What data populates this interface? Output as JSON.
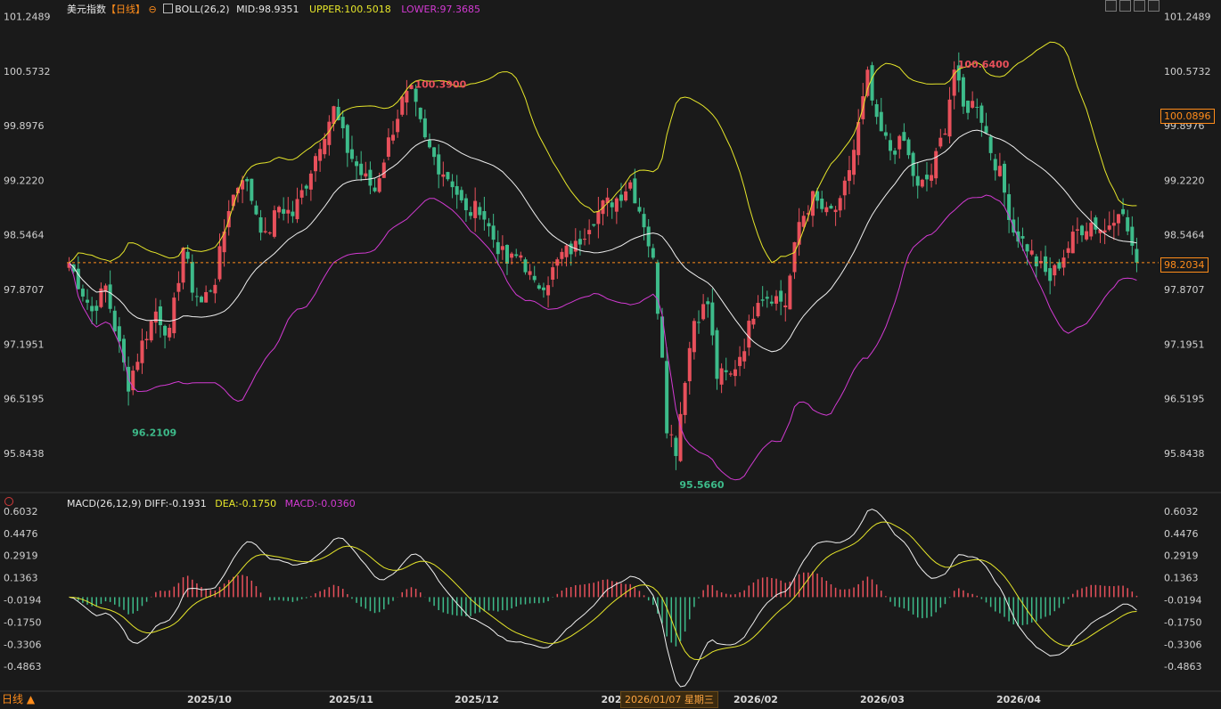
{
  "header": {
    "title": "美元指数",
    "period": "【日线】",
    "boll_label": "BOLL(26,2)",
    "mid": "MID:98.9351",
    "upper": "UPPER:100.5018",
    "lower": "LOWER:97.3685"
  },
  "macd_header": {
    "label": "MACD(26,12,9)",
    "diff": "DIFF:-0.1931",
    "dea": "DEA:-0.1750",
    "macd": "MACD:-0.0360"
  },
  "price_axis": [
    "101.2489",
    "100.5732",
    "99.8976",
    "99.2220",
    "98.5464",
    "97.8707",
    "97.1951",
    "96.5195",
    "95.8438"
  ],
  "macd_axis": [
    "0.6032",
    "0.4476",
    "0.2919",
    "0.1363",
    "-0.0194",
    "-0.1750",
    "-0.3306",
    "-0.4863"
  ],
  "time_labels": [
    "2025/10",
    "2025/11",
    "2025/12",
    "202",
    "2026/02",
    "2026/03",
    "2026/04"
  ],
  "date_tip": "2026/01/07 星期三",
  "bottom_tab": "日线 ▲",
  "current_price_tag": "98.2034",
  "upper_price_tag": "100.0896",
  "annotations": {
    "high1": "100.3900",
    "high2": "100.6400",
    "low1": "96.2109",
    "low2": "95.5660"
  },
  "colors": {
    "up": "#e8505b",
    "down": "#3dbb8a",
    "upper": "#e6e62a",
    "mid": "#f0f0f0",
    "lower": "#d23ad2",
    "dea": "#e6e62a",
    "diff": "#f0f0f0",
    "accent": "#ff8c1a"
  },
  "chart_data": [
    {
      "type": "candlestick",
      "title": "美元指数",
      "ylim": [
        95.5,
        101.3
      ],
      "close_anchors": [
        [
          0,
          98.2
        ],
        [
          5,
          97.6
        ],
        [
          8,
          97.9
        ],
        [
          10,
          97.4
        ],
        [
          13,
          96.7
        ],
        [
          16,
          97.2
        ],
        [
          19,
          97.6
        ],
        [
          22,
          97.3
        ],
        [
          25,
          98.4
        ],
        [
          27,
          97.9
        ],
        [
          29,
          97.7
        ],
        [
          32,
          98.0
        ],
        [
          35,
          98.9
        ],
        [
          38,
          99.3
        ],
        [
          40,
          99.0
        ],
        [
          43,
          98.5
        ],
        [
          46,
          98.9
        ],
        [
          49,
          98.8
        ],
        [
          52,
          99.2
        ],
        [
          55,
          99.7
        ],
        [
          58,
          100.1
        ],
        [
          61,
          99.6
        ],
        [
          64,
          99.3
        ],
        [
          67,
          99.1
        ],
        [
          70,
          99.7
        ],
        [
          73,
          100.2
        ],
        [
          75,
          100.3
        ],
        [
          78,
          99.7
        ],
        [
          81,
          99.4
        ],
        [
          84,
          99.2
        ],
        [
          87,
          98.8
        ],
        [
          90,
          98.9
        ],
        [
          93,
          98.5
        ],
        [
          96,
          98.2
        ],
        [
          99,
          98.3
        ],
        [
          102,
          97.9
        ],
        [
          105,
          98.0
        ],
        [
          108,
          98.3
        ],
        [
          111,
          98.4
        ],
        [
          114,
          98.7
        ],
        [
          117,
          98.9
        ],
        [
          120,
          99.0
        ],
        [
          123,
          99.2
        ],
        [
          126,
          98.7
        ],
        [
          128,
          98.2
        ],
        [
          130,
          97.1
        ],
        [
          131,
          96.2
        ],
        [
          133,
          95.9
        ],
        [
          135,
          96.8
        ],
        [
          137,
          97.5
        ],
        [
          140,
          97.7
        ],
        [
          142,
          96.8
        ],
        [
          145,
          96.8
        ],
        [
          148,
          97.2
        ],
        [
          151,
          97.8
        ],
        [
          154,
          97.8
        ],
        [
          157,
          97.7
        ],
        [
          160,
          98.7
        ],
        [
          163,
          99.0
        ],
        [
          166,
          98.8
        ],
        [
          169,
          98.9
        ],
        [
          172,
          99.6
        ],
        [
          175,
          100.5
        ],
        [
          177,
          99.9
        ],
        [
          180,
          99.6
        ],
        [
          183,
          99.7
        ],
        [
          186,
          99.1
        ],
        [
          189,
          99.3
        ],
        [
          192,
          99.9
        ],
        [
          194,
          100.6
        ],
        [
          196,
          100.1
        ],
        [
          199,
          100.2
        ],
        [
          202,
          99.6
        ],
        [
          204,
          99.3
        ],
        [
          207,
          98.6
        ],
        [
          210,
          98.4
        ],
        [
          212,
          98.2
        ],
        [
          215,
          98.0
        ],
        [
          218,
          98.3
        ],
        [
          221,
          98.6
        ],
        [
          224,
          98.7
        ],
        [
          227,
          98.6
        ],
        [
          230,
          98.9
        ],
        [
          232,
          98.6
        ],
        [
          234,
          98.2
        ]
      ],
      "boll": {
        "period": 26,
        "k": 2,
        "mid": 98.9351,
        "upper": 100.5018,
        "lower": 97.3685
      },
      "last_close": 98.2034
    },
    {
      "type": "bar+line",
      "title": "MACD(26,12,9)",
      "ylim": [
        -0.56,
        0.64
      ],
      "series": [
        {
          "name": "DIFF",
          "last": -0.1931
        },
        {
          "name": "DEA",
          "last": -0.175
        },
        {
          "name": "MACD",
          "last": -0.036
        }
      ]
    }
  ]
}
